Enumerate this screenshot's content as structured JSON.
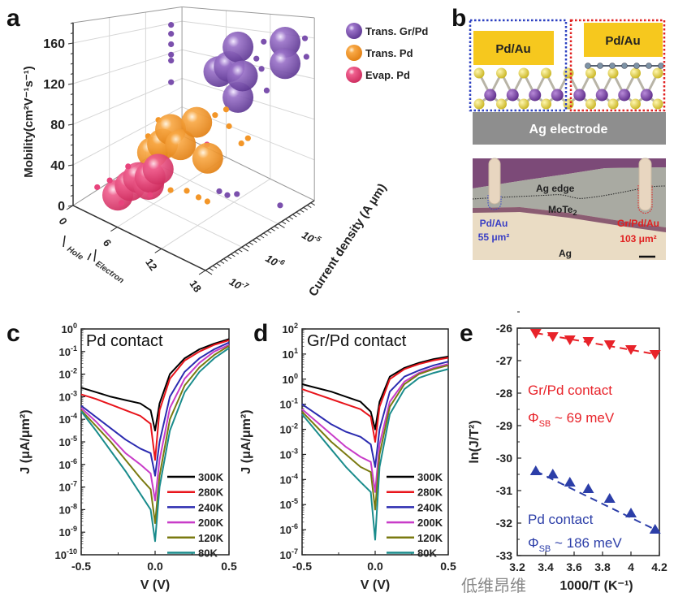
{
  "panel_labels": {
    "a": "a",
    "b": "b",
    "c": "c",
    "d": "d",
    "e": "e"
  },
  "chart_data": [
    {
      "id": "a",
      "type": "scatter",
      "subtype": "3d-bubble",
      "zlabel": "Mobility(cm²V⁻¹s⁻¹)",
      "xlabel_parts": [
        "Hole",
        "Electron"
      ],
      "ylabel": "Current density (A μm)",
      "x_ticks": [
        0,
        6,
        12,
        18
      ],
      "z_ticks": [
        0,
        40,
        80,
        120,
        160
      ],
      "y_tick_exponents": [
        -7,
        -6,
        -5
      ],
      "xlim": [
        0,
        18
      ],
      "ylim_log10": [
        -7,
        -4
      ],
      "zlim": [
        0,
        180
      ],
      "grid": true,
      "legend_position": "top-right",
      "series": [
        {
          "name": "Trans. Gr/Pd",
          "color": "#7b50ad",
          "big": [
            [
              6,
              -4.2,
              109
            ],
            [
              7.4,
              -4.2,
              118
            ],
            [
              8.6,
              -4.2,
              143
            ],
            [
              9.2,
              -4.2,
              111
            ],
            [
              8.6,
              -4.2,
              85
            ],
            [
              15,
              -4.2,
              157
            ],
            [
              15,
              -4.2,
              135
            ]
          ],
          "small": [
            [
              0,
              -4.3,
              158
            ],
            [
              0,
              -4.3,
              146
            ],
            [
              0,
              -4.3,
              132
            ],
            [
              0,
              -4.3,
              118
            ],
            [
              0,
              -4.3,
              110
            ],
            [
              0,
              -4.3,
              81
            ],
            [
              11.1,
              -4.2,
              134
            ],
            [
              12.1,
              -4.2,
              154
            ],
            [
              11.8,
              -4.2,
              124
            ],
            [
              12.5,
              -4.2,
              102
            ],
            [
              17.7,
              -4.2,
              164
            ],
            [
              17.9,
              -4.2,
              146
            ],
            [
              10,
              -5,
              4
            ],
            [
              11.1,
              -5,
              4
            ],
            [
              12.4,
              -5,
              10
            ],
            [
              16.3,
              -4.6,
              3
            ]
          ]
        },
        {
          "name": "Trans. Pd",
          "color": "#f39628",
          "big": [
            [
              9.4,
              -5.5,
              87
            ],
            [
              5.85,
              -5.5,
              68
            ],
            [
              4.75,
              -5.5,
              48
            ],
            [
              3.4,
              -5.5,
              34
            ],
            [
              7.2,
              -5.5,
              56
            ],
            [
              10.9,
              -5.5,
              54
            ]
          ],
          "small": [
            [
              4.2,
              -5.5,
              73
            ],
            [
              2.8,
              -5.5,
              50
            ],
            [
              11.9,
              -5.5,
              102
            ],
            [
              13.4,
              -5.5,
              112
            ],
            [
              13.8,
              -5.5,
              96
            ],
            [
              13,
              -5,
              65
            ],
            [
              13.9,
              -5,
              73
            ],
            [
              9.8,
              -6.3,
              35
            ],
            [
              12,
              -6.3,
              42
            ],
            [
              13.6,
              -6.3,
              41
            ],
            [
              14.8,
              -6.3,
              41
            ],
            [
              8.1,
              -6.3,
              32
            ]
          ]
        },
        {
          "name": "Evap. Pd",
          "color": "#e8437c",
          "big": [
            [
              3.6,
              -6.5,
              12
            ],
            [
              5.3,
              -6.5,
              28
            ],
            [
              6.4,
              -6.5,
              40
            ],
            [
              8,
              -6.5,
              46
            ],
            [
              9.1,
              -6.5,
              58
            ],
            [
              7.8,
              -6.5,
              38
            ]
          ],
          "small": [
            [
              1.8,
              -6.7,
              18
            ],
            [
              3.5,
              -6.7,
              31
            ],
            [
              6,
              -6.7,
              54
            ],
            [
              5.1,
              -6.7,
              14
            ],
            [
              9,
              -6.7,
              36
            ],
            [
              10.8,
              -5.5,
              68
            ]
          ]
        }
      ]
    },
    {
      "id": "c",
      "type": "line",
      "title": "Pd contact",
      "xlabel": "V (V)",
      "ylabel": "J (μA/μm²)",
      "x_ticks": [
        -0.5,
        0.0,
        0.5
      ],
      "x_tick_labels": [
        "-0.5",
        "0.0",
        "0.5"
      ],
      "xlim": [
        -0.5,
        0.5
      ],
      "ylim_log10": [
        -10,
        0
      ],
      "y_scale": "log",
      "legend_position": "bottom-right",
      "x": [
        -0.5,
        -0.4,
        -0.3,
        -0.2,
        -0.1,
        -0.03,
        0,
        0.03,
        0.1,
        0.2,
        0.3,
        0.4,
        0.5
      ],
      "series": [
        {
          "name": "300K",
          "color": "#000000",
          "log10_J": [
            -2.6,
            -2.8,
            -3.0,
            -3.15,
            -3.3,
            -3.6,
            -4.5,
            -3.3,
            -2.0,
            -1.3,
            -0.9,
            -0.65,
            -0.45
          ]
        },
        {
          "name": "280K",
          "color": "#e8141b",
          "log10_J": [
            -2.9,
            -3.1,
            -3.35,
            -3.6,
            -3.85,
            -4.2,
            -5.8,
            -3.6,
            -2.2,
            -1.4,
            -1.0,
            -0.7,
            -0.5
          ]
        },
        {
          "name": "240K",
          "color": "#2b2bb0",
          "log10_J": [
            -3.4,
            -3.9,
            -4.4,
            -4.9,
            -5.3,
            -5.5,
            -6.5,
            -5.0,
            -3.0,
            -1.9,
            -1.3,
            -0.9,
            -0.6
          ]
        },
        {
          "name": "200K",
          "color": "#c83cc8",
          "log10_J": [
            -3.5,
            -4.1,
            -4.8,
            -5.5,
            -6.0,
            -6.4,
            -7.6,
            -5.8,
            -3.5,
            -2.2,
            -1.5,
            -1.0,
            -0.7
          ]
        },
        {
          "name": "120K",
          "color": "#7a7a10",
          "log10_J": [
            -3.6,
            -4.3,
            -5.0,
            -5.8,
            -6.6,
            -7.1,
            -8.6,
            -6.5,
            -4.0,
            -2.5,
            -1.7,
            -1.15,
            -0.75
          ]
        },
        {
          "name": "80K",
          "color": "#1a8c8c",
          "log10_J": [
            -3.65,
            -4.5,
            -5.4,
            -6.3,
            -7.3,
            -8.0,
            -9.4,
            -7.0,
            -4.5,
            -2.8,
            -1.9,
            -1.3,
            -0.85
          ]
        }
      ]
    },
    {
      "id": "d",
      "type": "line",
      "title": "Gr/Pd contact",
      "xlabel": "V (V)",
      "ylabel": "J (μA/μm²)",
      "x_ticks": [
        -0.5,
        0.0,
        0.5
      ],
      "x_tick_labels": [
        "-0.5",
        "0.0",
        "0.5"
      ],
      "xlim": [
        -0.5,
        0.5
      ],
      "ylim_log10": [
        -7,
        2
      ],
      "y_scale": "log",
      "legend_position": "bottom-right",
      "x": [
        -0.5,
        -0.4,
        -0.3,
        -0.2,
        -0.1,
        -0.03,
        0,
        0.03,
        0.1,
        0.2,
        0.3,
        0.4,
        0.5
      ],
      "series": [
        {
          "name": "300K",
          "color": "#000000",
          "log10_J": [
            -0.2,
            -0.35,
            -0.5,
            -0.7,
            -0.9,
            -1.3,
            -2.0,
            -0.9,
            0.1,
            0.45,
            0.65,
            0.8,
            0.9
          ]
        },
        {
          "name": "280K",
          "color": "#e8141b",
          "log10_J": [
            -0.4,
            -0.6,
            -0.8,
            -1.0,
            -1.2,
            -1.5,
            -2.5,
            -1.1,
            0.0,
            0.4,
            0.6,
            0.75,
            0.85
          ]
        },
        {
          "name": "240K",
          "color": "#2b2bb0",
          "log10_J": [
            -1.0,
            -1.4,
            -1.8,
            -2.1,
            -2.3,
            -2.6,
            -3.5,
            -2.0,
            -0.5,
            0.1,
            0.35,
            0.55,
            0.7
          ]
        },
        {
          "name": "200K",
          "color": "#c83cc8",
          "log10_J": [
            -1.2,
            -1.7,
            -2.2,
            -2.7,
            -3.1,
            -3.3,
            -4.5,
            -2.6,
            -0.9,
            -0.1,
            0.25,
            0.45,
            0.6
          ]
        },
        {
          "name": "120K",
          "color": "#7a7a10",
          "log10_J": [
            -1.3,
            -1.9,
            -2.5,
            -3.0,
            -3.5,
            -3.7,
            -5.2,
            -3.0,
            -1.1,
            -0.2,
            0.2,
            0.4,
            0.55
          ]
        },
        {
          "name": "80K",
          "color": "#1a8c8c",
          "log10_J": [
            -1.4,
            -2.1,
            -2.8,
            -3.5,
            -4.1,
            -4.5,
            -6.4,
            -3.5,
            -1.4,
            -0.4,
            0.05,
            0.25,
            0.4
          ]
        }
      ]
    },
    {
      "id": "e",
      "type": "scatter",
      "xlabel": "1000/T (K⁻¹)",
      "ylabel": "ln(J/T²)",
      "x_ticks": [
        3.2,
        3.4,
        3.6,
        3.8,
        4.0,
        4.2
      ],
      "x_tick_labels": [
        "3.2",
        "3.4",
        "3.6",
        "3.8",
        "4",
        "4.2"
      ],
      "y_ticks": [
        -26,
        -27,
        -28,
        -29,
        -30,
        -31,
        -32,
        -33
      ],
      "xlim": [
        3.2,
        4.2
      ],
      "ylim": [
        -33,
        -26
      ],
      "x": [
        3.33,
        3.45,
        3.57,
        3.7,
        3.85,
        4.0,
        4.17
      ],
      "series": [
        {
          "name": "Gr/Pd contact",
          "annotation": "Φ",
          "annotation_sub": "SB",
          "annotation_rest": " ~ 69 meV",
          "color": "#e8232a",
          "marker": "triangle-down",
          "values": [
            -26.15,
            -26.25,
            -26.35,
            -26.4,
            -26.5,
            -26.65,
            -26.8
          ]
        },
        {
          "name": "Pd contact",
          "annotation": "Φ",
          "annotation_sub": "SB",
          "annotation_rest": " ~ 186 meV",
          "color": "#2c3ea8",
          "marker": "triangle-up",
          "values": [
            -30.4,
            -30.5,
            -30.75,
            -30.95,
            -31.25,
            -31.7,
            -32.2
          ]
        }
      ]
    }
  ],
  "schematic": {
    "left_contact": "Pd/Au",
    "right_contact": "Pd/Au",
    "electrode": "Ag electrode"
  },
  "micrograph": {
    "ag_edge": "Ag edge",
    "mote2": "MoTe",
    "mote2_sub": "2",
    "left_label": "Pd/Au",
    "left_area": "55 μm²",
    "right_label": "Gr/Pd/Au",
    "right_area": "103 μm²",
    "ag": "Ag"
  },
  "watermark": "低维昂维"
}
